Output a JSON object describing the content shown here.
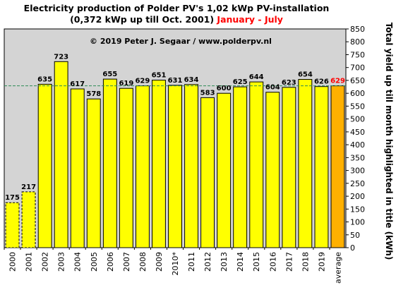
{
  "chart_data": {
    "type": "bar",
    "title_line1": "Electricity production  of Polder  PV's  1,02 kWp PV-installation",
    "title_line2_main": "(0,372 kWp up till Oct. 2001)",
    "title_line2_highlight": "January - July",
    "copyright": "© 2019 Peter J. Segaar / www.polderpv.nl",
    "ylabel": "Total yield up till month highlighted in title (kWh)",
    "xlabel": "",
    "ylim": [
      0,
      850
    ],
    "ytick_step": 50,
    "yaxis_position": "right",
    "grid": false,
    "average_line_value": 629,
    "categories": [
      "2000",
      "2001",
      "2002",
      "2003",
      "2004",
      "2005",
      "2006",
      "2007",
      "2008",
      "2009",
      "2010*",
      "2011",
      "2012",
      "2013",
      "2014",
      "2015",
      "2016",
      "2017",
      "2018",
      "2019",
      "average"
    ],
    "values": [
      175,
      217,
      635,
      723,
      617,
      578,
      655,
      619,
      629,
      651,
      631,
      634,
      583,
      600,
      625,
      644,
      604,
      623,
      654,
      626,
      629
    ],
    "dashed_categories": [
      "2000",
      "2001"
    ],
    "highlight_category": "average",
    "colors": {
      "bar": "#ffff00",
      "highlight_bar": "#ffb000",
      "highlight_label": "#ff0000",
      "title_highlight": "#ff0000",
      "plot_background": "#d4d4d4",
      "average_line": "#2e8b57"
    }
  }
}
